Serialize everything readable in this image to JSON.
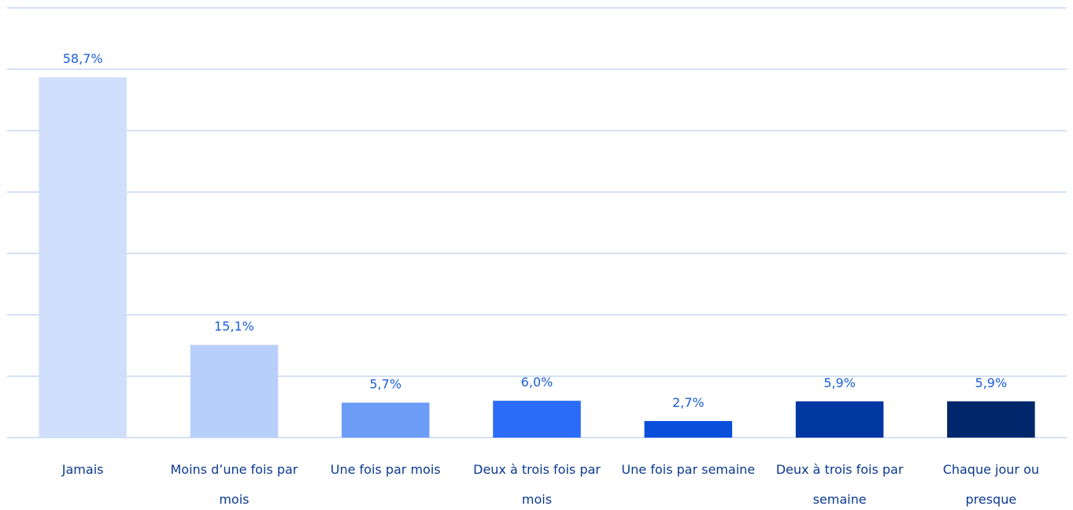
{
  "chart_data": {
    "type": "bar",
    "categories": [
      "Jamais",
      "Moins d’une fois par mois",
      "Une fois par mois",
      "Deux à trois fois par mois",
      "Une fois par semaine",
      "Deux à trois fois par semaine",
      "Chaque jour ou presque"
    ],
    "values": [
      58.7,
      15.1,
      5.7,
      6.0,
      2.7,
      5.9,
      5.9
    ],
    "value_labels": [
      "58,7%",
      "15,1%",
      "5,7%",
      "6,0%",
      "2,7%",
      "5,9%",
      "5,9%"
    ],
    "colors": [
      "#cfdffb",
      "#b9cffb",
      "#6e9df8",
      "#2a6cf6",
      "#0a4fdb",
      "#0037a1",
      "#00276c"
    ],
    "ylim": [
      0,
      70
    ],
    "yticks": [
      0,
      10,
      20,
      30,
      40,
      50,
      60,
      70
    ],
    "grid": true
  }
}
